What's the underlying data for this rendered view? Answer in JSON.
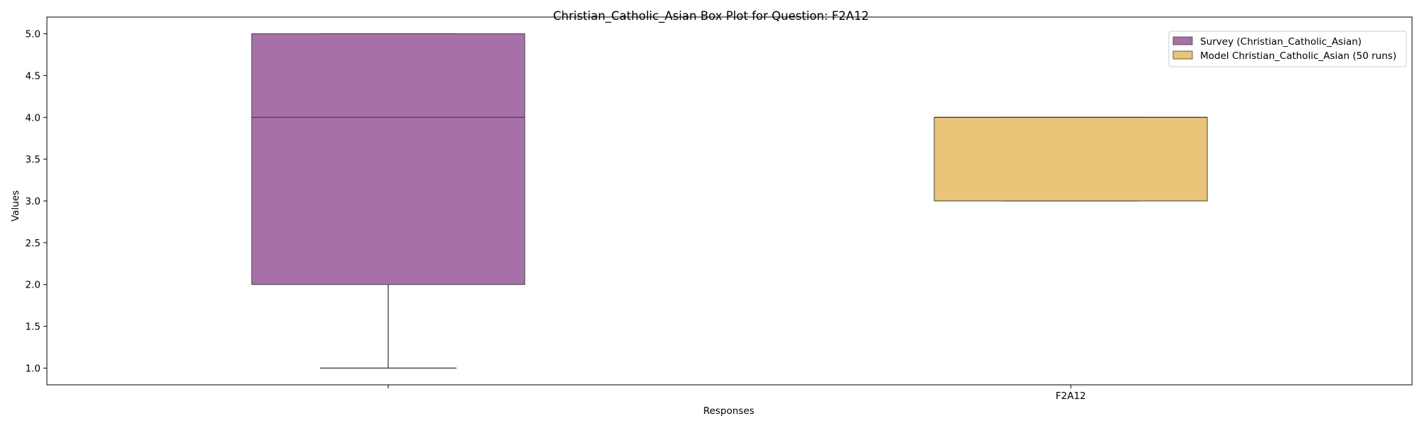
{
  "chart_data": {
    "type": "box",
    "title": "Christian_Catholic_Asian Box Plot for Question: F2A12",
    "xlabel": "Responses",
    "ylabel": "Values",
    "ylim": [
      0.8,
      5.2
    ],
    "yticks": [
      "1.0",
      "1.5",
      "2.0",
      "2.5",
      "3.0",
      "3.5",
      "4.0",
      "4.5",
      "5.0"
    ],
    "xticks": [
      "",
      "F2A12"
    ],
    "legend_position": "top-right",
    "series": [
      {
        "name": "Survey (Christian_Catholic_Asian)",
        "color": "#a870a9",
        "stats": {
          "whisker_low": 1.0,
          "q1": 2.0,
          "median": 4.0,
          "q3": 5.0,
          "whisker_high": 5.0
        }
      },
      {
        "name": "Model Christian_Catholic_Asian (50 runs)",
        "color": "#eac478",
        "stats": {
          "whisker_low": 3.0,
          "q1": 3.0,
          "median": 4.0,
          "q3": 4.0,
          "whisker_high": 4.0
        }
      }
    ]
  }
}
